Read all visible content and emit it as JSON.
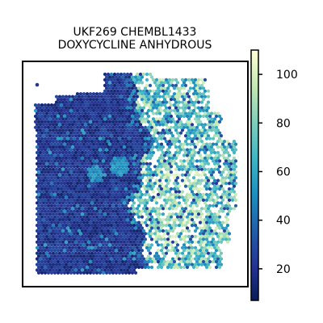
{
  "chart_data": {
    "type": "heatmap",
    "title_lines": [
      "UKF269 CHEMBL1433",
      "DOXYCYCLINE ANHYDROUS"
    ],
    "xlabel": "",
    "ylabel": "",
    "colormap": "YlGnBu_r",
    "color_stops": [
      "#081d58",
      "#253494",
      "#225ea8",
      "#1d91c0",
      "#41b6c4",
      "#7fcdbb",
      "#c7e9b4",
      "#ffffd9"
    ],
    "colorbar": {
      "range": [
        7,
        110
      ],
      "ticks": [
        20,
        40,
        60,
        80,
        100
      ],
      "tick_labels": [
        "20",
        "40",
        "60",
        "80",
        "100"
      ]
    },
    "axes_frame": true,
    "grid": false,
    "legend": "none",
    "description": "Hexagonal spot map of tissue; left region mostly low values (dark blue, ~10–30), right region high values (teal to pale yellow, ~50–100)",
    "regions": [
      {
        "name": "left",
        "value_range": [
          10,
          35
        ],
        "typical": 20
      },
      {
        "name": "right",
        "value_range": [
          40,
          105
        ],
        "typical": 70
      }
    ]
  }
}
